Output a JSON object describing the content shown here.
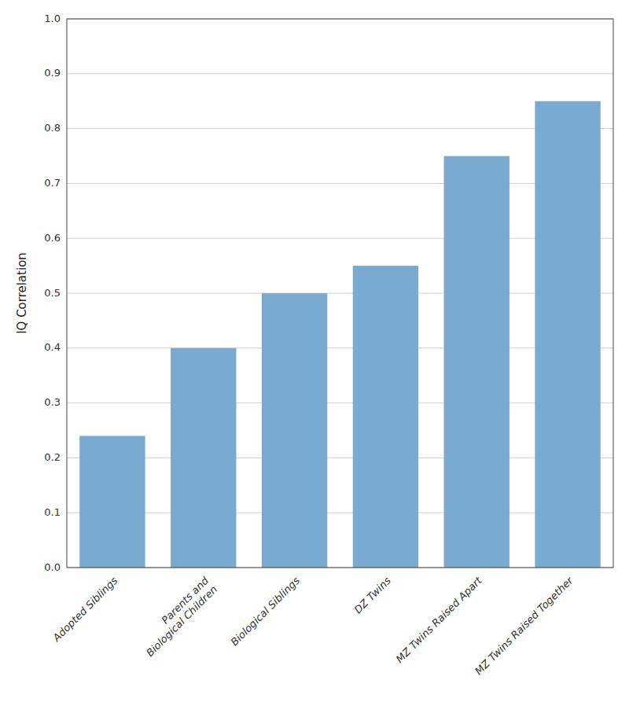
{
  "chart_data": {
    "type": "bar",
    "categories": [
      "Adopted Siblings",
      "Parents and\nBiological Children",
      "Biological Siblings",
      "DZ Twins",
      "MZ Twins Raised Apart",
      "MZ Twins Raised Together"
    ],
    "values": [
      0.24,
      0.4,
      0.5,
      0.55,
      0.75,
      0.85
    ],
    "color": "#7aaad0",
    "ylabel": "IQ Correlation",
    "ylim": [
      0.0,
      1.0
    ],
    "yticks": [
      {
        "value": 0.0,
        "label": "0.0"
      },
      0.1,
      0.2,
      0.3,
      0.4,
      0.5,
      0.6,
      0.7,
      0.8,
      0.9,
      {
        "value": 1.0,
        "label": "1.0"
      }
    ],
    "grid": true
  }
}
